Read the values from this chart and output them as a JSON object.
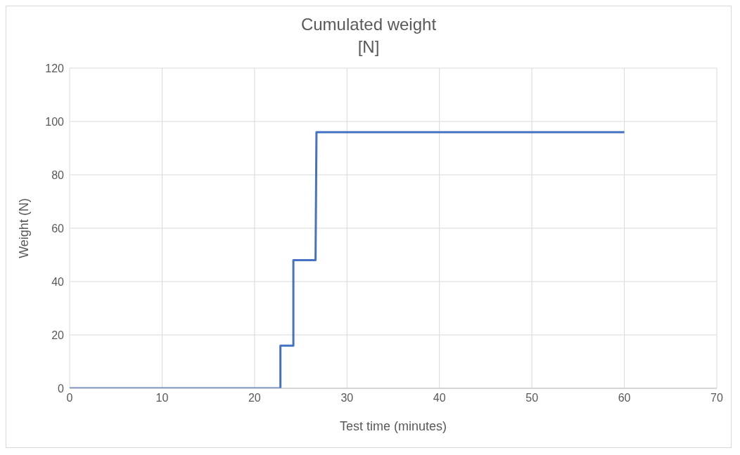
{
  "chart_data": {
    "type": "line",
    "title": "Cumulated weight",
    "subtitle": "[N]",
    "xlabel": "Test time (minutes)",
    "ylabel": "Weight (N)",
    "x": [
      0,
      22.8,
      22.8,
      24.2,
      24.2,
      26.6,
      26.7,
      60
    ],
    "series": [
      {
        "color": "#4472c4",
        "values": [
          0,
          0,
          16,
          16,
          48,
          48,
          96,
          96
        ]
      }
    ],
    "xlim": [
      0,
      70
    ],
    "xticks": [
      0,
      10,
      20,
      30,
      40,
      50,
      60,
      70
    ],
    "ylim": [
      0,
      120
    ],
    "yticks": [
      0,
      20,
      40,
      60,
      80,
      100,
      120
    ],
    "grid": true,
    "legend": false,
    "marker": "none",
    "line_style": "solid"
  }
}
